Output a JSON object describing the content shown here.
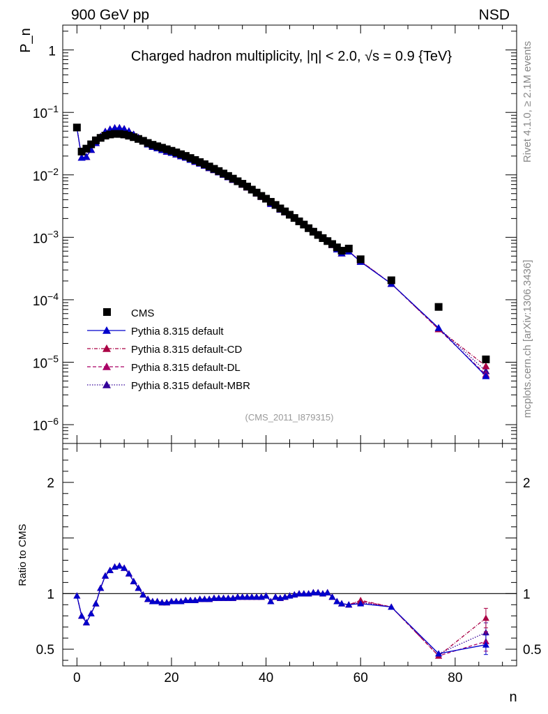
{
  "header": {
    "left": "900 GeV pp",
    "right": "NSD"
  },
  "side": {
    "top": "Rivet 4.1.0, ≥ 2.1M events",
    "bottom": "mcplots.cern.ch [arXiv:1306.3436]"
  },
  "chart_data": {
    "type": "scatter",
    "title": "Charged hadron multiplicity, |η| < 2.0, √s = 0.9 {TeV}",
    "analysis_label": "(CMS_2011_I879315)",
    "xlabel": "n",
    "ylabel": "P_n",
    "ratio_ylabel": "Ratio to CMS",
    "xlim": [
      -3,
      93
    ],
    "main_ylim": [
      5e-07,
      2.5
    ],
    "ratio_ylim": [
      0.35,
      2.35
    ],
    "yscale": "log",
    "main_yticks": [
      1,
      0.1,
      0.01,
      0.001,
      0.0001,
      1e-05,
      1e-06
    ],
    "main_ytick_labels": [
      {
        "base": "1",
        "exp": ""
      },
      {
        "base": "10",
        "exp": "−1"
      },
      {
        "base": "10",
        "exp": "−2"
      },
      {
        "base": "10",
        "exp": "−3"
      },
      {
        "base": "10",
        "exp": "−4"
      },
      {
        "base": "10",
        "exp": "−5"
      },
      {
        "base": "10",
        "exp": "−6"
      }
    ],
    "ratio_yticks": [
      0.5,
      1,
      2
    ],
    "ratio_ytick_labels": [
      "0.5",
      "1",
      "2"
    ],
    "xticks": [
      0,
      20,
      40,
      60,
      80
    ],
    "xtick_labels": [
      "0",
      "20",
      "40",
      "60",
      "80"
    ],
    "legend": [
      {
        "name": "CMS",
        "marker": "square",
        "color": "#000000",
        "dash": ""
      },
      {
        "name": "Pythia 8.315 default",
        "marker": "triangle",
        "color": "#0000cc",
        "dash": ""
      },
      {
        "name": "Pythia 8.315 default-CD",
        "marker": "triangle",
        "color": "#aa0044",
        "dash": "5,2,1,2"
      },
      {
        "name": "Pythia 8.315 default-DL",
        "marker": "triangle",
        "color": "#aa0066",
        "dash": "5,3"
      },
      {
        "name": "Pythia 8.315 default-MBR",
        "marker": "triangle",
        "color": "#330099",
        "dash": "1.5,2"
      }
    ],
    "data": {
      "x": [
        0,
        1,
        2,
        3,
        4,
        5,
        6,
        7,
        8,
        9,
        10,
        11,
        12,
        13,
        14,
        15,
        16,
        17,
        18,
        19,
        20,
        21,
        22,
        23,
        24,
        25,
        26,
        27,
        28,
        29,
        30,
        31,
        32,
        33,
        34,
        35,
        36,
        37,
        38,
        39,
        40,
        41,
        42,
        43,
        44,
        45,
        46,
        47,
        48,
        49,
        50,
        51,
        52,
        53,
        54,
        55,
        56,
        57.5,
        60,
        66.5,
        76.5,
        86.5
      ],
      "y": [
        0.0573,
        0.0236,
        0.0263,
        0.0308,
        0.0357,
        0.0391,
        0.0425,
        0.0443,
        0.0453,
        0.0452,
        0.0443,
        0.0424,
        0.0401,
        0.0376,
        0.0351,
        0.0324,
        0.0303,
        0.0287,
        0.0272,
        0.0257,
        0.0243,
        0.0229,
        0.0214,
        0.0201,
        0.0186,
        0.0173,
        0.016,
        0.0148,
        0.0136,
        0.0125,
        0.0115,
        0.0105,
        0.0096,
        0.0087,
        0.0079,
        0.0072,
        0.0065,
        0.0058,
        0.0052,
        0.0046,
        0.00415,
        0.0037,
        0.0033,
        0.0029,
        0.0026,
        0.0023,
        0.00204,
        0.0018,
        0.0016,
        0.0014,
        0.00123,
        0.00109,
        0.00097,
        0.00087,
        0.00078,
        0.00069,
        0.00061,
        0.00066,
        0.000445,
        0.000205,
        7.68e-05,
        1.11e-05
      ]
    },
    "ratio_x": [
      0,
      1,
      2,
      3,
      4,
      5,
      6,
      7,
      8,
      9,
      10,
      11,
      12,
      13,
      14,
      15,
      16,
      17,
      18,
      19,
      20,
      21,
      22,
      23,
      24,
      25,
      26,
      27,
      28,
      29,
      30,
      31,
      32,
      33,
      34,
      35,
      36,
      37,
      38,
      39,
      40,
      41,
      42,
      43,
      44,
      45,
      46,
      47,
      48,
      49,
      50,
      51,
      52,
      53,
      54,
      55,
      56,
      57.5,
      60,
      66.5,
      76.5,
      86.5
    ],
    "series": [
      {
        "name": "Pythia 8.315 default",
        "ratio": [
          0.98,
          0.8,
          0.74,
          0.82,
          0.91,
          1.05,
          1.16,
          1.21,
          1.24,
          1.25,
          1.23,
          1.18,
          1.11,
          1.05,
          0.99,
          0.95,
          0.93,
          0.93,
          0.92,
          0.92,
          0.93,
          0.93,
          0.93,
          0.94,
          0.94,
          0.94,
          0.95,
          0.95,
          0.95,
          0.96,
          0.96,
          0.96,
          0.96,
          0.96,
          0.97,
          0.97,
          0.97,
          0.97,
          0.97,
          0.97,
          0.98,
          0.93,
          0.97,
          0.96,
          0.97,
          0.98,
          0.99,
          1.0,
          1.0,
          1.0,
          1.01,
          1.01,
          1.0,
          1.01,
          0.97,
          0.93,
          0.91,
          0.9,
          0.91,
          0.88,
          0.46,
          0.54
        ]
      },
      {
        "name": "Pythia 8.315 default-CD",
        "ratio": [
          0.98,
          0.8,
          0.74,
          0.82,
          0.91,
          1.05,
          1.16,
          1.21,
          1.24,
          1.25,
          1.23,
          1.18,
          1.11,
          1.05,
          0.99,
          0.95,
          0.93,
          0.93,
          0.92,
          0.92,
          0.93,
          0.93,
          0.93,
          0.94,
          0.94,
          0.94,
          0.95,
          0.95,
          0.95,
          0.96,
          0.96,
          0.96,
          0.96,
          0.96,
          0.97,
          0.97,
          0.97,
          0.97,
          0.97,
          0.97,
          0.98,
          0.93,
          0.97,
          0.96,
          0.97,
          0.98,
          0.99,
          1.0,
          1.0,
          1.0,
          1.01,
          1.01,
          1.0,
          1.01,
          0.97,
          0.93,
          0.91,
          0.9,
          0.94,
          0.88,
          0.44,
          0.78
        ]
      },
      {
        "name": "Pythia 8.315 default-DL",
        "ratio": [
          0.98,
          0.8,
          0.74,
          0.82,
          0.91,
          1.05,
          1.16,
          1.21,
          1.24,
          1.25,
          1.23,
          1.18,
          1.11,
          1.05,
          0.99,
          0.95,
          0.93,
          0.93,
          0.92,
          0.92,
          0.93,
          0.93,
          0.93,
          0.94,
          0.94,
          0.94,
          0.95,
          0.95,
          0.95,
          0.96,
          0.96,
          0.96,
          0.96,
          0.96,
          0.97,
          0.97,
          0.97,
          0.97,
          0.97,
          0.97,
          0.98,
          0.93,
          0.97,
          0.96,
          0.97,
          0.98,
          0.99,
          1.0,
          1.0,
          1.0,
          1.01,
          1.01,
          1.0,
          1.01,
          0.97,
          0.93,
          0.91,
          0.9,
          0.93,
          0.88,
          0.44,
          0.57
        ]
      },
      {
        "name": "Pythia 8.315 default-MBR",
        "ratio": [
          0.98,
          0.8,
          0.74,
          0.82,
          0.91,
          1.05,
          1.16,
          1.21,
          1.24,
          1.25,
          1.23,
          1.18,
          1.11,
          1.05,
          0.99,
          0.95,
          0.93,
          0.93,
          0.92,
          0.92,
          0.93,
          0.93,
          0.93,
          0.94,
          0.94,
          0.94,
          0.95,
          0.95,
          0.95,
          0.96,
          0.96,
          0.96,
          0.96,
          0.96,
          0.97,
          0.97,
          0.97,
          0.97,
          0.97,
          0.97,
          0.98,
          0.93,
          0.97,
          0.96,
          0.97,
          0.98,
          0.99,
          1.0,
          1.0,
          1.0,
          1.01,
          1.01,
          1.0,
          1.01,
          0.97,
          0.93,
          0.91,
          0.9,
          0.92,
          0.88,
          0.46,
          0.65
        ]
      }
    ]
  }
}
